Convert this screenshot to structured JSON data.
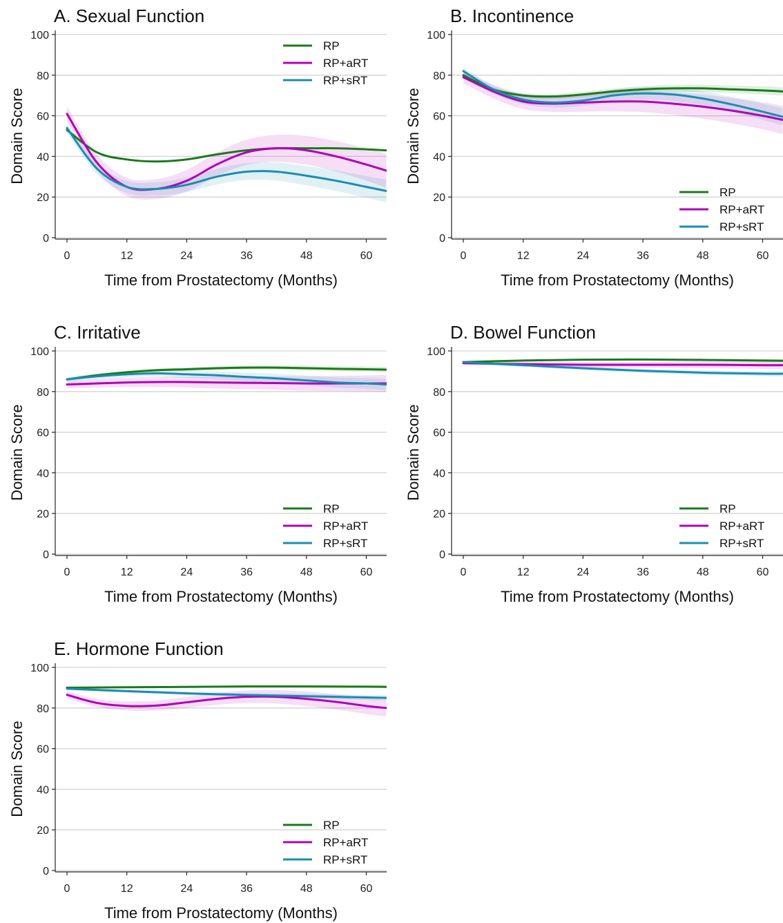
{
  "colors": {
    "RP": "#1a7a1a",
    "RP+aRT": "#b000b8",
    "RP+sRT": "#1a8cb0",
    "grid": "#d3d3d3"
  },
  "chart_data": [
    {
      "type": "line",
      "title": "A. Sexual Function",
      "xlabel": "Time from Prostatectomy (Months)",
      "ylabel": "Domain Score",
      "xlim": [
        0,
        64
      ],
      "ylim": [
        0,
        100
      ],
      "xticks": [
        "0",
        "12",
        "24",
        "36",
        "48",
        "60"
      ],
      "yticks": [
        "0",
        "20",
        "40",
        "60",
        "80",
        "100"
      ],
      "grid": "horizontal",
      "legend_position": "top-right",
      "legend": [
        "RP",
        "RP+aRT",
        "RP+sRT"
      ],
      "series": [
        {
          "name": "RP",
          "x": [
            0,
            6,
            12,
            18,
            24,
            30,
            36,
            42,
            48,
            54,
            60,
            64
          ],
          "y": [
            53,
            42,
            38.5,
            37.5,
            38.5,
            41,
            43,
            44,
            44,
            44,
            43.5,
            43
          ],
          "ci": 0
        },
        {
          "name": "RP+aRT",
          "x": [
            0,
            6,
            12,
            18,
            24,
            30,
            36,
            42,
            48,
            54,
            60,
            64
          ],
          "y": [
            61,
            37,
            25,
            24,
            28,
            36,
            42,
            44,
            43,
            40,
            36,
            33
          ],
          "ci": 6
        },
        {
          "name": "RP+sRT",
          "x": [
            0,
            6,
            12,
            18,
            24,
            30,
            36,
            42,
            48,
            54,
            60,
            64
          ],
          "y": [
            54,
            34,
            25,
            24,
            26,
            30,
            32.5,
            32.5,
            30.5,
            28,
            25,
            23
          ],
          "ci": 4
        }
      ]
    },
    {
      "type": "line",
      "title": "B. Incontinence",
      "xlabel": "Time from Prostatectomy (Months)",
      "ylabel": "Domain Score",
      "xlim": [
        0,
        64
      ],
      "ylim": [
        0,
        100
      ],
      "xticks": [
        "0",
        "12",
        "24",
        "36",
        "48",
        "60"
      ],
      "yticks": [
        "0",
        "20",
        "40",
        "60",
        "80",
        "100"
      ],
      "grid": "horizontal",
      "legend_position": "bottom-right",
      "legend": [
        "RP",
        "RP+aRT",
        "RP+sRT"
      ],
      "series": [
        {
          "name": "RP",
          "x": [
            0,
            6,
            12,
            18,
            24,
            30,
            36,
            42,
            48,
            54,
            60,
            64
          ],
          "y": [
            80,
            73,
            70,
            69.5,
            70.5,
            72,
            73,
            73.5,
            73.5,
            73,
            72.5,
            72
          ],
          "ci": 1.5
        },
        {
          "name": "RP+aRT",
          "x": [
            0,
            6,
            12,
            18,
            24,
            30,
            36,
            42,
            48,
            54,
            60,
            64
          ],
          "y": [
            79,
            72,
            67,
            66,
            66.5,
            67,
            67,
            66,
            64.5,
            62.5,
            60,
            58
          ],
          "ci": 5
        },
        {
          "name": "RP+sRT",
          "x": [
            0,
            6,
            12,
            18,
            24,
            30,
            36,
            42,
            48,
            54,
            60,
            64
          ],
          "y": [
            82,
            73,
            68,
            66.5,
            67.5,
            70,
            71,
            70.5,
            68.5,
            65.5,
            62,
            59.5
          ],
          "ci": 3
        }
      ]
    },
    {
      "type": "line",
      "title": "C. Irritative",
      "xlabel": "Time from Prostatectomy (Months)",
      "ylabel": "Domain Score",
      "xlim": [
        0,
        64
      ],
      "ylim": [
        0,
        100
      ],
      "xticks": [
        "0",
        "12",
        "24",
        "36",
        "48",
        "60"
      ],
      "yticks": [
        "0",
        "20",
        "40",
        "60",
        "80",
        "100"
      ],
      "grid": "horizontal",
      "legend_position": "bottom-right",
      "legend": [
        "RP",
        "RP+aRT",
        "RP+sRT"
      ],
      "series": [
        {
          "name": "RP",
          "x": [
            0,
            6,
            12,
            18,
            24,
            30,
            36,
            42,
            48,
            54,
            60,
            64
          ],
          "y": [
            86,
            88,
            89.5,
            90.5,
            91,
            91.5,
            91.8,
            91.8,
            91.5,
            91.2,
            91,
            90.8
          ],
          "ci": 1
        },
        {
          "name": "RP+aRT",
          "x": [
            0,
            6,
            12,
            18,
            24,
            30,
            36,
            42,
            48,
            54,
            60,
            64
          ],
          "y": [
            83.5,
            84,
            84.5,
            84.7,
            84.7,
            84.5,
            84.3,
            84.2,
            84,
            84,
            84,
            84
          ],
          "ci": 3
        },
        {
          "name": "RP+sRT",
          "x": [
            0,
            6,
            12,
            18,
            24,
            30,
            36,
            42,
            48,
            54,
            60,
            64
          ],
          "y": [
            86,
            87.5,
            88.5,
            89,
            88.5,
            88,
            87.2,
            86.5,
            85.5,
            84.5,
            84,
            83.5
          ],
          "ci": 2
        }
      ]
    },
    {
      "type": "line",
      "title": "D. Bowel Function",
      "xlabel": "Time from Prostatectomy (Months)",
      "ylabel": "Domain Score",
      "xlim": [
        0,
        64
      ],
      "ylim": [
        0,
        100
      ],
      "xticks": [
        "0",
        "12",
        "24",
        "36",
        "48",
        "60"
      ],
      "yticks": [
        "0",
        "20",
        "40",
        "60",
        "80",
        "100"
      ],
      "grid": "horizontal",
      "legend_position": "bottom-right",
      "legend": [
        "RP",
        "RP+aRT",
        "RP+sRT"
      ],
      "series": [
        {
          "name": "RP",
          "x": [
            0,
            12,
            24,
            36,
            48,
            60,
            64
          ],
          "y": [
            94.5,
            95.3,
            95.7,
            95.8,
            95.6,
            95.3,
            95.2
          ],
          "ci": 0.5
        },
        {
          "name": "RP+aRT",
          "x": [
            0,
            12,
            24,
            36,
            48,
            60,
            64
          ],
          "y": [
            94,
            93.5,
            93.2,
            93.2,
            93.2,
            93,
            93
          ],
          "ci": 1.5
        },
        {
          "name": "RP+sRT",
          "x": [
            0,
            12,
            24,
            36,
            48,
            60,
            64
          ],
          "y": [
            94.5,
            93,
            91.5,
            90.2,
            89.3,
            88.8,
            88.8
          ],
          "ci": 1
        }
      ]
    },
    {
      "type": "line",
      "title": "E. Hormone Function",
      "xlabel": "Time from Prostatectomy (Months)",
      "ylabel": "Domain Score",
      "xlim": [
        0,
        64
      ],
      "ylim": [
        0,
        100
      ],
      "xticks": [
        "0",
        "12",
        "24",
        "36",
        "48",
        "60"
      ],
      "yticks": [
        "0",
        "20",
        "40",
        "60",
        "80",
        "100"
      ],
      "grid": "horizontal",
      "legend_position": "bottom-right",
      "legend": [
        "RP",
        "RP+aRT",
        "RP+sRT"
      ],
      "series": [
        {
          "name": "RP",
          "x": [
            0,
            12,
            24,
            36,
            48,
            60,
            64
          ],
          "y": [
            90,
            90.2,
            90.4,
            90.6,
            90.6,
            90.5,
            90.4
          ],
          "ci": 0.5
        },
        {
          "name": "RP+aRT",
          "x": [
            0,
            6,
            12,
            18,
            24,
            30,
            36,
            42,
            48,
            54,
            60,
            64
          ],
          "y": [
            86.5,
            82.5,
            81,
            81.2,
            82.8,
            84.5,
            85.5,
            85.5,
            84.5,
            83,
            81,
            80
          ],
          "ci": 3
        },
        {
          "name": "RP+sRT",
          "x": [
            0,
            12,
            24,
            36,
            48,
            60,
            64
          ],
          "y": [
            89.5,
            88.3,
            87.2,
            86.4,
            85.8,
            85.2,
            85
          ],
          "ci": 1
        }
      ]
    }
  ]
}
